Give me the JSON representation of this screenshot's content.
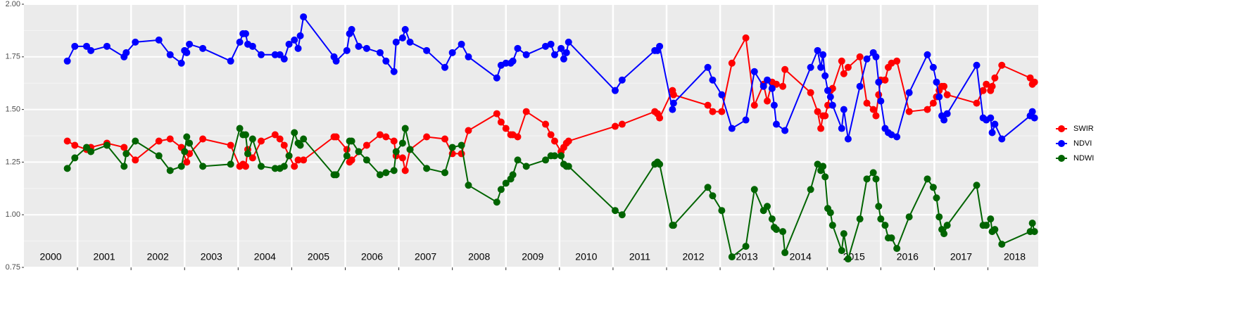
{
  "chart_data": {
    "type": "line",
    "xlim": [
      2000,
      2018.94
    ],
    "xticks": [
      2001,
      2002,
      2003,
      2004,
      2005,
      2006,
      2007,
      2008,
      2009,
      2010,
      2011,
      2012,
      2013,
      2014,
      2015,
      2016,
      2017,
      2018
    ],
    "year_labels": [
      "2000",
      "2001",
      "2002",
      "2003",
      "2004",
      "2005",
      "2006",
      "2007",
      "2008",
      "2009",
      "2010",
      "2011",
      "2012",
      "2013",
      "2014",
      "2015",
      "2016",
      "2017",
      "2018"
    ],
    "ylim": [
      0.75,
      2.0
    ],
    "yticks": [
      0.75,
      {
        "value": 1.0,
        "label": "1.00"
      },
      1.25,
      {
        "value": 1.5,
        "label": "1.50"
      },
      1.75,
      {
        "value": 2.0,
        "label": "2.00"
      }
    ],
    "grid": true,
    "legend": "right",
    "series": [
      {
        "name": "SWIR",
        "color": "#ff0000",
        "x": [
          2000.81,
          2000.95,
          2001.17,
          2001.25,
          2001.55,
          2001.87,
          2002.08,
          2002.52,
          2002.73,
          2002.94,
          2003.04,
          2003.09,
          2003.34,
          2003.86,
          2004.03,
          2004.09,
          2004.14,
          2004.18,
          2004.27,
          2004.43,
          2004.69,
          2004.78,
          2004.86,
          2004.95,
          2005.05,
          2005.12,
          2005.22,
          2005.79,
          2005.83,
          2006.03,
          2006.08,
          2006.12,
          2006.4,
          2006.65,
          2006.76,
          2006.91,
          2006.95,
          2007.07,
          2007.12,
          2007.21,
          2007.52,
          2007.86,
          2008.0,
          2008.17,
          2008.3,
          2008.83,
          2008.91,
          2009.0,
          2009.09,
          2009.13,
          2009.22,
          2009.38,
          2009.74,
          2009.84,
          2009.91,
          2010.03,
          2010.08,
          2010.13,
          2010.17,
          2011.04,
          2011.17,
          2011.78,
          2011.83,
          2011.87,
          2012.11,
          2012.13,
          2012.77,
          2012.86,
          2013.03,
          2013.22,
          2013.48,
          2013.64,
          2013.81,
          2013.88,
          2013.97,
          2014.05,
          2014.17,
          2014.21,
          2014.69,
          2014.82,
          2014.88,
          2014.92,
          2014.96,
          2015.01,
          2015.06,
          2015.1,
          2015.27,
          2015.31,
          2015.39,
          2015.61,
          2015.74,
          2015.86,
          2015.91,
          2015.96,
          2016.0,
          2016.08,
          2016.14,
          2016.2,
          2016.3,
          2016.53,
          2016.87,
          2016.98,
          2017.04,
          2017.09,
          2017.14,
          2017.18,
          2017.24,
          2017.79,
          2017.91,
          2017.97,
          2018.05,
          2018.08,
          2018.13,
          2018.26,
          2018.79,
          2018.83,
          2018.87
        ],
        "values": [
          1.35,
          1.33,
          1.31,
          1.32,
          1.34,
          1.32,
          1.26,
          1.35,
          1.36,
          1.32,
          1.25,
          1.29,
          1.36,
          1.33,
          1.23,
          1.24,
          1.23,
          1.31,
          1.27,
          1.35,
          1.38,
          1.36,
          1.33,
          1.28,
          1.23,
          1.26,
          1.26,
          1.37,
          1.37,
          1.31,
          1.25,
          1.26,
          1.33,
          1.38,
          1.37,
          1.35,
          1.28,
          1.27,
          1.21,
          1.31,
          1.37,
          1.36,
          1.29,
          1.29,
          1.4,
          1.48,
          1.44,
          1.41,
          1.38,
          1.38,
          1.37,
          1.49,
          1.43,
          1.38,
          1.35,
          1.3,
          1.32,
          1.34,
          1.35,
          1.42,
          1.43,
          1.49,
          1.48,
          1.46,
          1.59,
          1.57,
          1.52,
          1.49,
          1.49,
          1.72,
          1.84,
          1.52,
          1.62,
          1.54,
          1.63,
          1.62,
          1.61,
          1.69,
          1.58,
          1.49,
          1.41,
          1.47,
          1.47,
          1.52,
          1.59,
          1.6,
          1.73,
          1.67,
          1.7,
          1.75,
          1.53,
          1.5,
          1.47,
          1.57,
          1.64,
          1.64,
          1.7,
          1.72,
          1.73,
          1.49,
          1.5,
          1.53,
          1.56,
          1.59,
          1.61,
          1.61,
          1.57,
          1.53,
          1.59,
          1.62,
          1.59,
          1.61,
          1.65,
          1.71,
          1.65,
          1.62,
          1.63
        ]
      },
      {
        "name": "NDVI",
        "color": "#0000ff",
        "x": [
          2000.81,
          2000.95,
          2001.17,
          2001.25,
          2001.55,
          2001.87,
          2001.91,
          2002.08,
          2002.52,
          2002.73,
          2002.94,
          2003.0,
          2003.04,
          2003.09,
          2003.34,
          2003.86,
          2004.03,
          2004.09,
          2004.14,
          2004.18,
          2004.27,
          2004.43,
          2004.69,
          2004.78,
          2004.86,
          2004.95,
          2005.05,
          2005.12,
          2005.16,
          2005.22,
          2005.79,
          2005.83,
          2006.03,
          2006.08,
          2006.12,
          2006.25,
          2006.4,
          2006.65,
          2006.76,
          2006.91,
          2006.95,
          2007.07,
          2007.12,
          2007.21,
          2007.52,
          2007.86,
          2008.0,
          2008.17,
          2008.3,
          2008.83,
          2008.91,
          2009.0,
          2009.09,
          2009.13,
          2009.22,
          2009.38,
          2009.74,
          2009.84,
          2009.91,
          2010.03,
          2010.08,
          2010.13,
          2010.17,
          2011.04,
          2011.17,
          2011.78,
          2011.83,
          2011.87,
          2012.11,
          2012.13,
          2012.77,
          2012.86,
          2013.03,
          2013.22,
          2013.48,
          2013.64,
          2013.81,
          2013.88,
          2013.97,
          2014.01,
          2014.05,
          2014.21,
          2014.69,
          2014.82,
          2014.88,
          2014.92,
          2014.96,
          2015.01,
          2015.06,
          2015.1,
          2015.27,
          2015.31,
          2015.39,
          2015.61,
          2015.74,
          2015.86,
          2015.91,
          2015.96,
          2016.0,
          2016.08,
          2016.14,
          2016.2,
          2016.3,
          2016.53,
          2016.87,
          2016.98,
          2017.04,
          2017.09,
          2017.14,
          2017.18,
          2017.24,
          2017.79,
          2017.91,
          2017.97,
          2018.05,
          2018.08,
          2018.13,
          2018.26,
          2018.79,
          2018.83,
          2018.87
        ],
        "values": [
          1.73,
          1.8,
          1.8,
          1.78,
          1.8,
          1.75,
          1.77,
          1.82,
          1.83,
          1.76,
          1.72,
          1.78,
          1.77,
          1.81,
          1.79,
          1.73,
          1.82,
          1.86,
          1.86,
          1.81,
          1.8,
          1.76,
          1.76,
          1.76,
          1.74,
          1.81,
          1.83,
          1.79,
          1.85,
          1.94,
          1.75,
          1.73,
          1.78,
          1.86,
          1.88,
          1.8,
          1.79,
          1.77,
          1.73,
          1.68,
          1.82,
          1.84,
          1.88,
          1.82,
          1.78,
          1.7,
          1.77,
          1.81,
          1.75,
          1.65,
          1.71,
          1.72,
          1.72,
          1.73,
          1.79,
          1.76,
          1.8,
          1.81,
          1.76,
          1.79,
          1.74,
          1.77,
          1.82,
          1.59,
          1.64,
          1.78,
          1.78,
          1.8,
          1.5,
          1.53,
          1.7,
          1.64,
          1.57,
          1.41,
          1.45,
          1.68,
          1.61,
          1.64,
          1.6,
          1.52,
          1.43,
          1.4,
          1.7,
          1.78,
          1.7,
          1.76,
          1.66,
          1.59,
          1.56,
          1.52,
          1.41,
          1.5,
          1.36,
          1.61,
          1.74,
          1.77,
          1.75,
          1.63,
          1.54,
          1.41,
          1.39,
          1.38,
          1.37,
          1.58,
          1.76,
          1.7,
          1.63,
          1.56,
          1.47,
          1.45,
          1.48,
          1.71,
          1.46,
          1.45,
          1.46,
          1.39,
          1.43,
          1.36,
          1.47,
          1.49,
          1.46
        ]
      },
      {
        "name": "NDWI",
        "color": "#006400",
        "x": [
          2000.81,
          2000.95,
          2001.17,
          2001.25,
          2001.55,
          2001.87,
          2001.91,
          2002.08,
          2002.52,
          2002.73,
          2002.94,
          2003.0,
          2003.04,
          2003.09,
          2003.34,
          2003.86,
          2004.03,
          2004.09,
          2004.14,
          2004.18,
          2004.27,
          2004.43,
          2004.69,
          2004.78,
          2004.86,
          2004.95,
          2005.05,
          2005.12,
          2005.16,
          2005.22,
          2005.79,
          2005.83,
          2006.03,
          2006.08,
          2006.12,
          2006.25,
          2006.4,
          2006.65,
          2006.76,
          2006.91,
          2006.95,
          2007.07,
          2007.12,
          2007.21,
          2007.52,
          2007.86,
          2008.0,
          2008.17,
          2008.3,
          2008.83,
          2008.91,
          2009.0,
          2009.09,
          2009.13,
          2009.22,
          2009.38,
          2009.74,
          2009.84,
          2009.91,
          2010.03,
          2010.08,
          2010.13,
          2010.17,
          2011.04,
          2011.17,
          2011.78,
          2011.83,
          2011.87,
          2012.11,
          2012.13,
          2012.77,
          2012.86,
          2013.03,
          2013.22,
          2013.48,
          2013.64,
          2013.81,
          2013.88,
          2013.97,
          2014.01,
          2014.05,
          2014.17,
          2014.21,
          2014.69,
          2014.82,
          2014.88,
          2014.92,
          2014.96,
          2015.01,
          2015.06,
          2015.1,
          2015.27,
          2015.31,
          2015.39,
          2015.61,
          2015.74,
          2015.86,
          2015.91,
          2015.96,
          2016.0,
          2016.08,
          2016.14,
          2016.2,
          2016.3,
          2016.53,
          2016.87,
          2016.98,
          2017.04,
          2017.09,
          2017.14,
          2017.18,
          2017.24,
          2017.79,
          2017.91,
          2017.97,
          2018.05,
          2018.08,
          2018.13,
          2018.26,
          2018.79,
          2018.83,
          2018.87
        ],
        "values": [
          1.22,
          1.27,
          1.32,
          1.3,
          1.33,
          1.23,
          1.29,
          1.35,
          1.28,
          1.21,
          1.23,
          1.3,
          1.37,
          1.34,
          1.23,
          1.24,
          1.41,
          1.38,
          1.38,
          1.29,
          1.36,
          1.23,
          1.22,
          1.22,
          1.23,
          1.28,
          1.39,
          1.34,
          1.33,
          1.36,
          1.19,
          1.19,
          1.28,
          1.35,
          1.35,
          1.3,
          1.26,
          1.19,
          1.2,
          1.21,
          1.3,
          1.34,
          1.41,
          1.31,
          1.22,
          1.2,
          1.32,
          1.33,
          1.14,
          1.06,
          1.12,
          1.15,
          1.17,
          1.19,
          1.26,
          1.23,
          1.26,
          1.28,
          1.28,
          1.28,
          1.24,
          1.23,
          1.23,
          1.02,
          1.0,
          1.24,
          1.25,
          1.24,
          0.95,
          0.95,
          1.13,
          1.09,
          1.02,
          0.8,
          0.85,
          1.12,
          1.02,
          1.04,
          0.98,
          0.94,
          0.93,
          0.92,
          0.82,
          1.12,
          1.24,
          1.21,
          1.23,
          1.18,
          1.03,
          1.01,
          0.95,
          0.83,
          0.91,
          0.79,
          0.98,
          1.17,
          1.2,
          1.17,
          1.04,
          0.98,
          0.95,
          0.89,
          0.89,
          0.84,
          0.99,
          1.17,
          1.13,
          1.08,
          0.99,
          0.93,
          0.91,
          0.95,
          1.14,
          0.95,
          0.95,
          0.98,
          0.92,
          0.93,
          0.86,
          0.92,
          0.96,
          0.92
        ]
      }
    ]
  }
}
